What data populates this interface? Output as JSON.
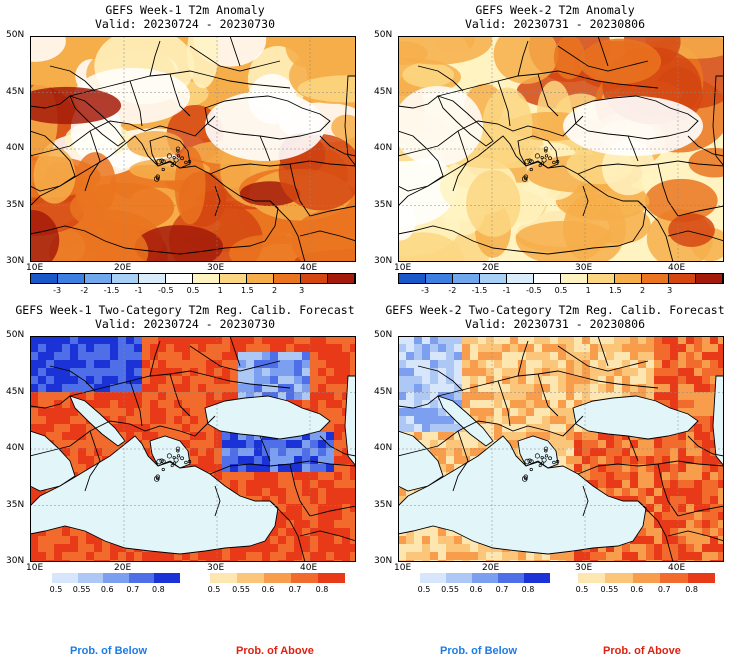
{
  "panels": [
    {
      "title1": "GEFS Week-1 T2m Anomaly",
      "title2": "Valid: 20230724 - 20230730"
    },
    {
      "title1": "GEFS Week-2 T2m Anomaly",
      "title2": "Valid: 20230731 - 20230806"
    },
    {
      "title1": "GEFS Week-1 Two-Category T2m Reg. Calib. Forecast",
      "title2": "Valid: 20230724 - 20230730"
    },
    {
      "title1": "GEFS Week-2 Two-Category T2m Reg. Calib. Forecast",
      "title2": "Valid: 20230731 - 20230806"
    }
  ],
  "axes": {
    "lat_labels": [
      "50N",
      "45N",
      "40N",
      "35N",
      "30N"
    ],
    "lon_labels": [
      "10E",
      "20E",
      "30E",
      "40E"
    ]
  },
  "anomaly_colorbar": {
    "labels": [
      "-3",
      "-2",
      "-1.5",
      "-1",
      "-0.5",
      "0.5",
      "1",
      "1.5",
      "2",
      "3"
    ],
    "colors": [
      "#1a57c8",
      "#3d7fe0",
      "#6fa8ec",
      "#a6d0f6",
      "#d8ecfb",
      "#ffffff",
      "#fff3c2",
      "#fcd783",
      "#f6ae4a",
      "#ea7420",
      "#d54612",
      "#a41b0b"
    ]
  },
  "prob_colorbar": {
    "below_labels": [
      "0.5",
      "0.55",
      "0.6",
      "0.7",
      "0.8"
    ],
    "above_labels": [
      "0.5",
      "0.55",
      "0.6",
      "0.7",
      "0.8"
    ],
    "below_colors": [
      "#d8e6fb",
      "#aec8f6",
      "#7d9ff0",
      "#4e6fe8",
      "#1a32d6"
    ],
    "above_colors": [
      "#fde6b0",
      "#fcc67a",
      "#f89d4c",
      "#f26b2c",
      "#e83a18"
    ]
  },
  "prob_labels": {
    "below": "Prob. of Below",
    "above": "Prob. of Above",
    "below_color": "#1e7be6",
    "above_color": "#e02010"
  }
}
